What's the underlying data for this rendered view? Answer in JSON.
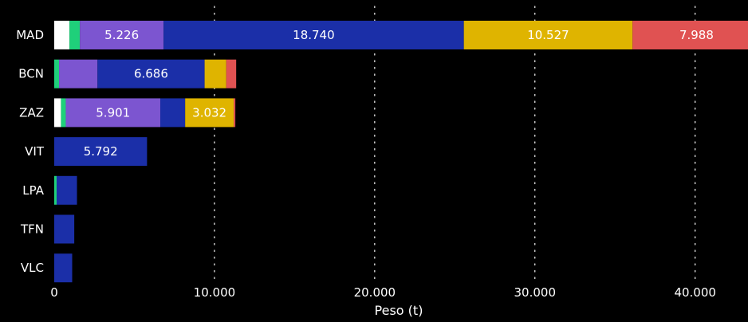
{
  "chart_data": {
    "type": "bar",
    "orientation": "horizontal",
    "stacked": true,
    "categories": [
      "MAD",
      "BCN",
      "ZAZ",
      "VIT",
      "LPA",
      "TFN",
      "VLC"
    ],
    "series": [
      {
        "color": "#ffffff",
        "values": [
          950,
          0,
          420,
          0,
          0,
          0,
          0
        ]
      },
      {
        "color": "#1fd07a",
        "values": [
          650,
          300,
          300,
          0,
          150,
          0,
          0
        ]
      },
      {
        "color": "#7c55d0",
        "values": [
          5226,
          2400,
          5901,
          0,
          0,
          0,
          0
        ]
      },
      {
        "color": "#1b2fa8",
        "values": [
          18740,
          6686,
          1550,
          5792,
          1270,
          1250,
          1120
        ]
      },
      {
        "color": "#dfb400",
        "values": [
          10527,
          1350,
          3032,
          0,
          0,
          0,
          0
        ]
      },
      {
        "color": "#e05252",
        "values": [
          7988,
          620,
          100,
          0,
          0,
          0,
          0
        ]
      }
    ],
    "data_labels": [
      {
        "category": "MAD",
        "series_index": 2,
        "text": "5.226"
      },
      {
        "category": "MAD",
        "series_index": 3,
        "text": "18.740"
      },
      {
        "category": "MAD",
        "series_index": 4,
        "text": "10.527"
      },
      {
        "category": "MAD",
        "series_index": 5,
        "text": "7.988"
      },
      {
        "category": "BCN",
        "series_index": 3,
        "text": "6.686"
      },
      {
        "category": "ZAZ",
        "series_index": 2,
        "text": "5.901"
      },
      {
        "category": "ZAZ",
        "series_index": 4,
        "text": "3.032"
      },
      {
        "category": "VIT",
        "series_index": 3,
        "text": "5.792"
      }
    ],
    "xlabel": "Peso (t)",
    "xticks": [
      {
        "value": 0,
        "label": "0"
      },
      {
        "value": 10000,
        "label": "10.000"
      },
      {
        "value": 20000,
        "label": "20.000"
      },
      {
        "value": 30000,
        "label": "30.000"
      },
      {
        "value": 40000,
        "label": "40.000"
      }
    ],
    "xlim": [
      0,
      43300
    ],
    "grid": "vertical-dotted",
    "legend": "none"
  }
}
